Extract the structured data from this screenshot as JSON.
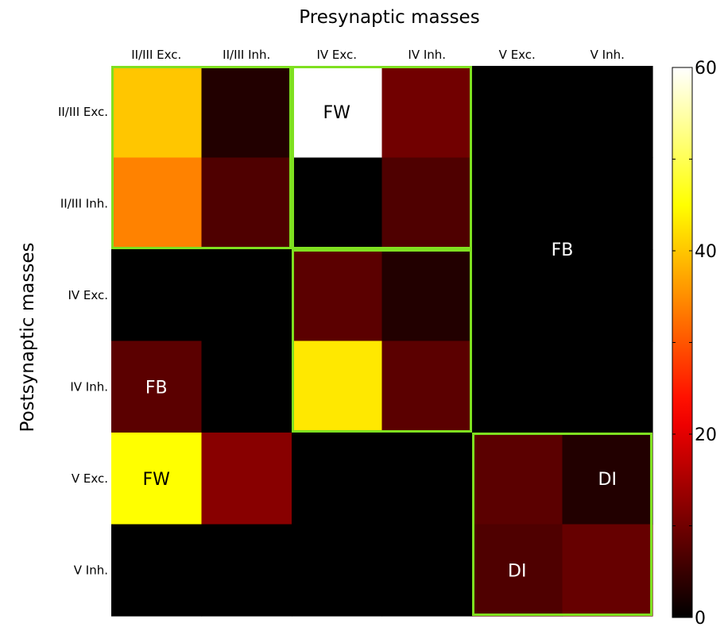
{
  "chart_data": {
    "type": "heatmap",
    "xlabel": "Presynaptic masses",
    "ylabel": "Postsynaptic masses",
    "x_categories": [
      "II/III Exc.",
      "II/III Inh.",
      "IV Exc.",
      "IV Inh.",
      "V Exc.",
      "V Inh."
    ],
    "y_categories": [
      "II/III Exc.",
      "II/III Inh.",
      "IV Exc.",
      "IV Inh.",
      "V Exc.",
      "V Inh."
    ],
    "values": [
      [
        40,
        3,
        60,
        10,
        0,
        0
      ],
      [
        34,
        7,
        0,
        7,
        0,
        0
      ],
      [
        0,
        0,
        8,
        3,
        0,
        0
      ],
      [
        8,
        0,
        43,
        8,
        0,
        0
      ],
      [
        45,
        12,
        0,
        0,
        8,
        3
      ],
      [
        0,
        0,
        0,
        0,
        7,
        9
      ]
    ],
    "colorbar": {
      "range": [
        0,
        60
      ],
      "tick_labels": [
        "0",
        "20",
        "40",
        "60"
      ],
      "colormap": "hot"
    },
    "outlined_blocks": [
      {
        "row_start": 0,
        "row_end": 1,
        "col_start": 0,
        "col_end": 1
      },
      {
        "row_start": 0,
        "row_end": 1,
        "col_start": 2,
        "col_end": 3
      },
      {
        "row_start": 2,
        "row_end": 3,
        "col_start": 2,
        "col_end": 3
      },
      {
        "row_start": 4,
        "row_end": 5,
        "col_start": 4,
        "col_end": 5
      }
    ],
    "outline_color": "#7fe020",
    "annotations": [
      {
        "text": "FW",
        "row": 0,
        "col": 2,
        "color": "#000000"
      },
      {
        "text": "FB",
        "row": 1.5,
        "col": 4.5,
        "color": "#ffffff"
      },
      {
        "text": "FB",
        "row": 3,
        "col": 0,
        "color": "#ffffff"
      },
      {
        "text": "FW",
        "row": 4,
        "col": 0,
        "color": "#000000"
      },
      {
        "text": "DI",
        "row": 4,
        "col": 5,
        "color": "#ffffff"
      },
      {
        "text": "DI",
        "row": 5,
        "col": 4,
        "color": "#ffffff"
      }
    ]
  }
}
